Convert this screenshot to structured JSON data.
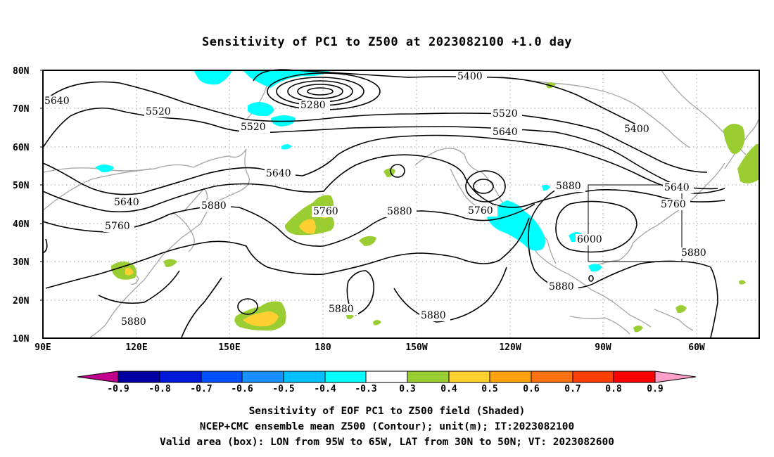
{
  "title": "Sensitivity of PC1 to Z500 at 2023082100 +1.0 day",
  "lat_labels": [
    "80N",
    "70N",
    "60N",
    "50N",
    "40N",
    "30N",
    "20N",
    "10N"
  ],
  "lon_labels": [
    "90E",
    "120E",
    "150E",
    "180",
    "150W",
    "120W",
    "90W",
    "60W"
  ],
  "contour_labels": [
    "5640",
    "5520",
    "5280",
    "5400",
    "5520",
    "5640",
    "5400",
    "5520",
    "5640",
    "5760",
    "5640",
    "5640",
    "5760",
    "5760",
    "5880",
    "5880",
    "5760",
    "5880",
    "6000",
    "5880",
    "5880",
    "5880",
    "5880",
    "5880"
  ],
  "colorbar": {
    "labels": [
      "-0.9",
      "-0.8",
      "-0.7",
      "-0.6",
      "-0.5",
      "-0.4",
      "-0.3",
      "0.3",
      "0.4",
      "0.5",
      "0.6",
      "0.7",
      "0.8",
      "0.9"
    ],
    "colors": [
      "#0000a0",
      "#0018d8",
      "#0050ff",
      "#1890ff",
      "#00c0ff",
      "#00ffff",
      "#ffffff",
      "#9acd32",
      "#ffd030",
      "#ffa010",
      "#ff7010",
      "#ff4000",
      "#ff0000"
    ],
    "left_arrow_color": "#c0008c",
    "right_arrow_color": "#ffa0c8"
  },
  "captions": [
    "Sensitivity of EOF PC1 to Z500 field (Shaded)",
    "NCEP+CMC ensemble mean Z500 (Contour); unit(m); IT:2023082100",
    "Valid area (box): LON from 95W to 65W, LAT from 30N to 50N; VT: 2023082600"
  ]
}
